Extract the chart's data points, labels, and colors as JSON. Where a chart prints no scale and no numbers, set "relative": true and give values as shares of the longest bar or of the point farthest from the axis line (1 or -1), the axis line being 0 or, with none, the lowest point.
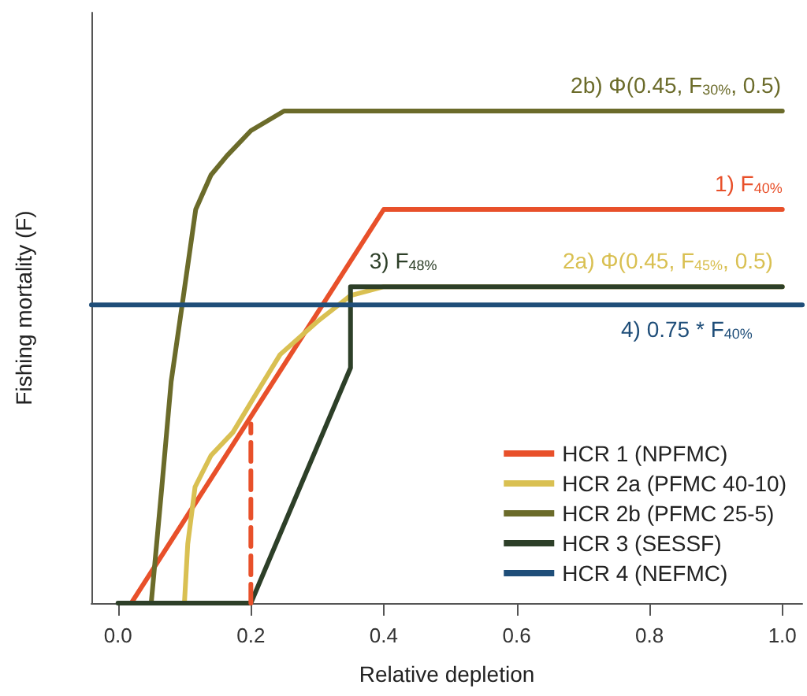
{
  "chart_data": {
    "type": "line",
    "relative": true,
    "xlabel": "Relative depletion",
    "ylabel": "Fishing mortality (F)",
    "xlim": [
      -0.04,
      1.03
    ],
    "xticks": [
      {
        "value": 0,
        "label": "0.0"
      },
      0.2,
      0.4,
      0.6,
      0.8,
      {
        "value": 1,
        "label": "1.0"
      }
    ],
    "grid": false,
    "legend": "bottom right",
    "marker": "none",
    "series": [
      {
        "name": "HCR 1 (NPFMC)",
        "color": "#e8502a",
        "x": [
          0.02,
          0.4,
          1
        ],
        "values": [
          0,
          0.8,
          0.8
        ]
      },
      {
        "name": "HCR 2a (PFMC 40-10)",
        "color": "#d9c052",
        "x": [
          0.1,
          0.105,
          0.116,
          0.14,
          0.173,
          0.21,
          0.244,
          0.3,
          0.35,
          0.4,
          1
        ],
        "values": [
          0,
          0.12,
          0.236,
          0.3,
          0.347,
          0.43,
          0.505,
          0.572,
          0.625,
          0.643,
          0.643
        ]
      },
      {
        "name": "HCR 2b (PFMC 25-5)",
        "color": "#6b6b2a",
        "x": [
          0.05,
          0.066,
          0.08,
          0.093,
          0.117,
          0.14,
          0.164,
          0.2,
          0.25,
          1
        ],
        "values": [
          0,
          0.236,
          0.45,
          0.572,
          0.8,
          0.87,
          0.909,
          0.96,
          1,
          1
        ]
      },
      {
        "name": "HCR 3 (SESSF)",
        "color": "#2d3f28",
        "x": [
          0,
          0.2,
          0.35,
          0.35,
          1
        ],
        "values": [
          0,
          0,
          0.478,
          0.643,
          0.643
        ]
      },
      {
        "name": "HCR 4 (NEFMC)",
        "color": "#1f4e79",
        "x": [
          -0.04,
          1.03
        ],
        "values": [
          0.606,
          0.606
        ]
      },
      {
        "color": "#e8502a",
        "line_style": "dashed",
        "x": [
          0.2,
          0.2
        ],
        "values": [
          0,
          0.364
        ]
      }
    ],
    "annotations": [
      {
        "text": "2b) Φ(0.45, F$_{30%}$, 0.5)",
        "x": 0.998,
        "y": 1
      },
      {
        "text": "1) F$_{40%}$",
        "x": 1,
        "y": 0.8
      },
      {
        "text": "3) F$_{48%}$",
        "x": 0.35,
        "y": 0.643
      },
      {
        "text": "2a) Φ(0.45, F$_{45%}$, 0.5)",
        "x": 0.986,
        "y": 0.643
      },
      {
        "text": "4) 0.75 * F$_{40%}$",
        "x": 0.955,
        "y": 0.606
      }
    ]
  }
}
